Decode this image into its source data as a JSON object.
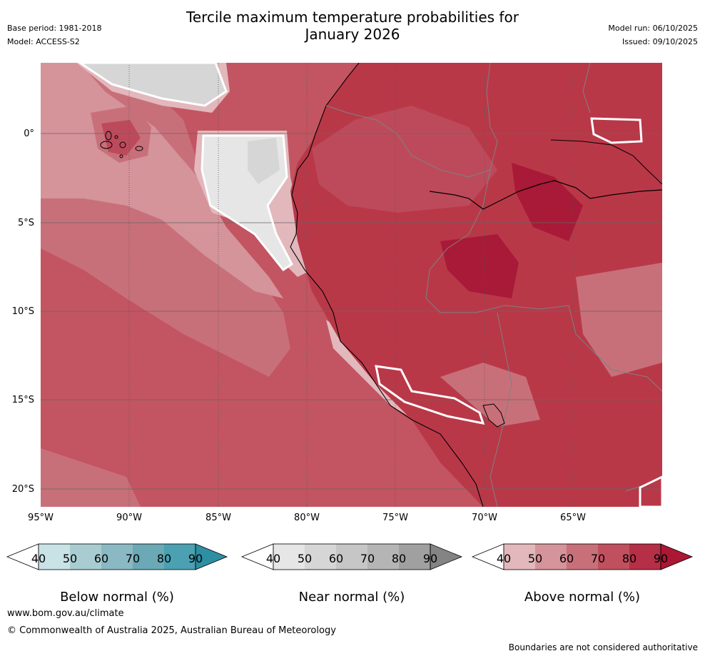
{
  "header": {
    "title_line1": "Tercile maximum temperature probabilities for",
    "title_line2": "January 2026",
    "base_period": "Base period: 1981-2018",
    "model": "Model: ACCESS-S2",
    "model_run": "Model run: 06/10/2025",
    "issued": "Issued: 09/10/2025"
  },
  "map": {
    "lat_labels": [
      "0°",
      "5°S",
      "10°S",
      "15°S",
      "20°S"
    ],
    "lon_labels": [
      "95°W",
      "90°W",
      "85°W",
      "80°W",
      "75°W",
      "70°W",
      "65°W"
    ],
    "colors": {
      "ocean_base": "#c25561",
      "land_base": "#b93848",
      "above_40": "#e2b8bc",
      "above_50": "#d5939a",
      "above_60": "#c8707a",
      "above_70": "#bd4a5b",
      "above_80": "#b6344a",
      "above_90": "#a81a37",
      "near_40": "#e6e6e6",
      "near_50": "#d6d6d6",
      "coast": "#000000",
      "border": "#808080"
    }
  },
  "colorbars": [
    {
      "title": "Below normal (%)",
      "ticks": [
        "40",
        "50",
        "60",
        "70",
        "80",
        "90"
      ],
      "colors": [
        "#c8e2e6",
        "#a8ccd1",
        "#8ab9c3",
        "#6aa9b5",
        "#4ba0b1",
        "#2e8ea3"
      ]
    },
    {
      "title": "Near normal (%)",
      "ticks": [
        "40",
        "50",
        "60",
        "70",
        "80",
        "90"
      ],
      "colors": [
        "#e6e6e6",
        "#d6d6d6",
        "#c6c6c6",
        "#b5b5b5",
        "#a0a0a0",
        "#848484"
      ]
    },
    {
      "title": "Above normal (%)",
      "ticks": [
        "40",
        "50",
        "60",
        "70",
        "80",
        "90"
      ],
      "colors": [
        "#e2b8bc",
        "#d5939a",
        "#c8707a",
        "#c0505e",
        "#b52f47",
        "#ac1734"
      ]
    }
  ],
  "footer": {
    "url": "www.bom.gov.au/climate",
    "copyright": "© Commonwealth of Australia 2025, Australian Bureau of Meteorology",
    "note": "Boundaries are not considered authoritative"
  }
}
